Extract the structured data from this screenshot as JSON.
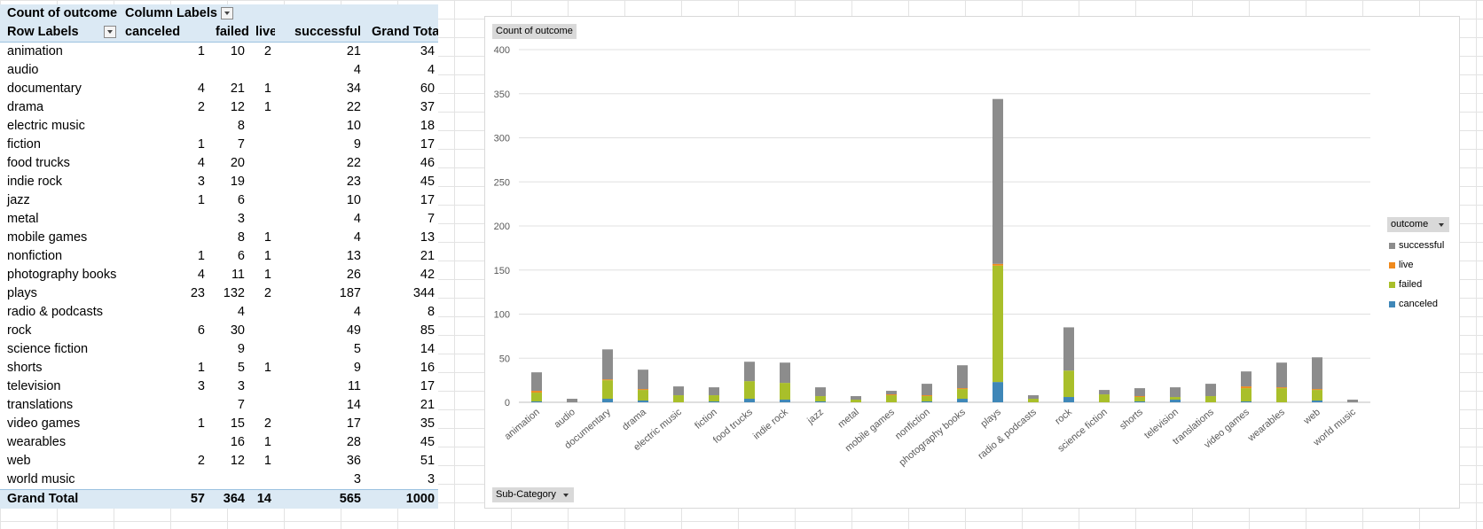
{
  "pivot": {
    "corner_label": "Count of outcome",
    "column_labels": "Column Labels",
    "row_labels": "Row Labels",
    "columns": [
      "canceled",
      "failed",
      "live",
      "successful",
      "Grand Total"
    ],
    "rows": [
      {
        "label": "animation",
        "values": [
          "1",
          "10",
          "2",
          "21",
          "34"
        ]
      },
      {
        "label": "audio",
        "values": [
          "",
          "",
          "",
          "4",
          "4"
        ]
      },
      {
        "label": "documentary",
        "values": [
          "4",
          "21",
          "1",
          "34",
          "60"
        ]
      },
      {
        "label": "drama",
        "values": [
          "2",
          "12",
          "1",
          "22",
          "37"
        ]
      },
      {
        "label": "electric music",
        "values": [
          "",
          "8",
          "",
          "10",
          "18"
        ]
      },
      {
        "label": "fiction",
        "values": [
          "1",
          "7",
          "",
          "9",
          "17"
        ]
      },
      {
        "label": "food trucks",
        "values": [
          "4",
          "20",
          "",
          "22",
          "46"
        ]
      },
      {
        "label": "indie rock",
        "values": [
          "3",
          "19",
          "",
          "23",
          "45"
        ]
      },
      {
        "label": "jazz",
        "values": [
          "1",
          "6",
          "",
          "10",
          "17"
        ]
      },
      {
        "label": "metal",
        "values": [
          "",
          "3",
          "",
          "4",
          "7"
        ]
      },
      {
        "label": "mobile games",
        "values": [
          "",
          "8",
          "1",
          "4",
          "13"
        ]
      },
      {
        "label": "nonfiction",
        "values": [
          "1",
          "6",
          "1",
          "13",
          "21"
        ]
      },
      {
        "label": "photography books",
        "values": [
          "4",
          "11",
          "1",
          "26",
          "42"
        ]
      },
      {
        "label": "plays",
        "values": [
          "23",
          "132",
          "2",
          "187",
          "344"
        ]
      },
      {
        "label": "radio & podcasts",
        "values": [
          "",
          "4",
          "",
          "4",
          "8"
        ]
      },
      {
        "label": "rock",
        "values": [
          "6",
          "30",
          "",
          "49",
          "85"
        ]
      },
      {
        "label": "science fiction",
        "values": [
          "",
          "9",
          "",
          "5",
          "14"
        ]
      },
      {
        "label": "shorts",
        "values": [
          "1",
          "5",
          "1",
          "9",
          "16"
        ]
      },
      {
        "label": "television",
        "values": [
          "3",
          "3",
          "",
          "11",
          "17"
        ]
      },
      {
        "label": "translations",
        "values": [
          "",
          "7",
          "",
          "14",
          "21"
        ]
      },
      {
        "label": "video games",
        "values": [
          "1",
          "15",
          "2",
          "17",
          "35"
        ]
      },
      {
        "label": "wearables",
        "values": [
          "",
          "16",
          "1",
          "28",
          "45"
        ]
      },
      {
        "label": "web",
        "values": [
          "2",
          "12",
          "1",
          "36",
          "51"
        ]
      },
      {
        "label": "world music",
        "values": [
          "",
          "",
          "",
          "3",
          "3"
        ]
      }
    ],
    "total": {
      "label": "Grand Total",
      "values": [
        "57",
        "364",
        "14",
        "565",
        "1000"
      ]
    }
  },
  "chart_data": {
    "type": "bar",
    "stacked": true,
    "title": "",
    "value_field_label": "Count of outcome",
    "axis_field_label": "Sub-Category",
    "legend_title": "outcome",
    "legend_position": "right",
    "ylim": [
      0,
      400
    ],
    "yticks": [
      0,
      50,
      100,
      150,
      200,
      250,
      300,
      350,
      400
    ],
    "grid": true,
    "categories": [
      "animation",
      "audio",
      "documentary",
      "drama",
      "electric music",
      "fiction",
      "food trucks",
      "indie rock",
      "jazz",
      "metal",
      "mobile games",
      "nonfiction",
      "photography books",
      "plays",
      "radio & podcasts",
      "rock",
      "science fiction",
      "shorts",
      "television",
      "translations",
      "video games",
      "wearables",
      "web",
      "world music"
    ],
    "series": [
      {
        "name": "canceled",
        "color": "#3f87b8",
        "values": [
          1,
          0,
          4,
          2,
          0,
          1,
          4,
          3,
          1,
          0,
          0,
          1,
          4,
          23,
          0,
          6,
          0,
          1,
          3,
          0,
          1,
          0,
          2,
          0
        ]
      },
      {
        "name": "failed",
        "color": "#a9bf2a",
        "values": [
          10,
          0,
          21,
          12,
          8,
          7,
          20,
          19,
          6,
          3,
          8,
          6,
          11,
          132,
          4,
          30,
          9,
          5,
          3,
          7,
          15,
          16,
          12,
          0
        ]
      },
      {
        "name": "live",
        "color": "#f08a1c",
        "values": [
          2,
          0,
          1,
          1,
          0,
          0,
          0,
          0,
          0,
          0,
          1,
          1,
          1,
          2,
          0,
          0,
          0,
          1,
          0,
          0,
          2,
          1,
          1,
          0
        ]
      },
      {
        "name": "successful",
        "color": "#8c8c8c",
        "values": [
          21,
          4,
          34,
          22,
          10,
          9,
          22,
          23,
          10,
          4,
          4,
          13,
          26,
          187,
          4,
          49,
          5,
          9,
          11,
          14,
          17,
          28,
          36,
          3
        ]
      }
    ],
    "legend_order": [
      "successful",
      "live",
      "failed",
      "canceled"
    ]
  }
}
